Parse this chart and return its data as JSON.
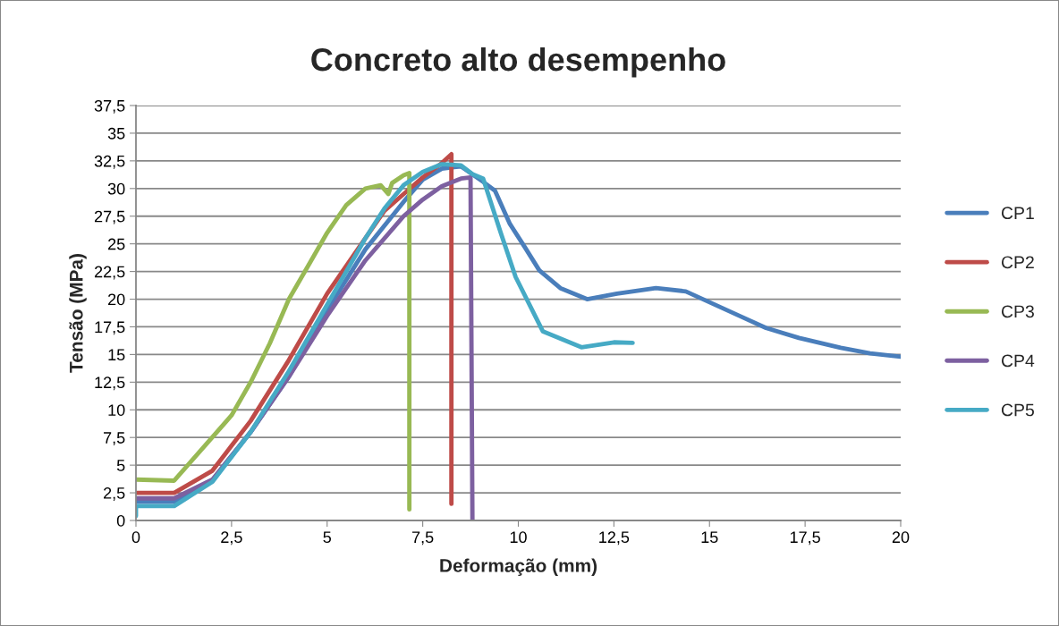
{
  "chart_data": {
    "type": "line",
    "title": "Concreto alto desempenho",
    "xlabel": "Deformação (mm)",
    "ylabel": "Tensão (MPa)",
    "xlim": [
      0,
      20
    ],
    "xticks": [
      0,
      {
        "value": 2.5,
        "label": "2,5"
      },
      5,
      {
        "value": 7.5,
        "label": "7,5"
      },
      10,
      {
        "value": 12.5,
        "label": "12,5"
      },
      15,
      {
        "value": 17.5,
        "label": "17,5"
      },
      20
    ],
    "ylim": [
      0,
      37.5
    ],
    "yticks": [
      0,
      {
        "value": 2.5,
        "label": "2,5"
      },
      5,
      {
        "value": 7.5,
        "label": "7,5"
      },
      10,
      {
        "value": 12.5,
        "label": "12,5"
      },
      15,
      {
        "value": 17.5,
        "label": "17,5"
      },
      20,
      {
        "value": 22.5,
        "label": "22,5"
      },
      25,
      {
        "value": 27.5,
        "label": "27,5"
      },
      30,
      {
        "value": 32.5,
        "label": "32,5"
      },
      35,
      {
        "value": 37.5,
        "label": "37,5"
      }
    ],
    "grid": "y",
    "legend": "right",
    "marker": "none",
    "line_style": "solid",
    "series": [
      {
        "name": "CP1",
        "color": "#4a7ebb",
        "x": [
          0,
          1,
          2,
          3,
          4,
          5,
          6,
          7,
          7.5,
          8,
          8.5,
          9.08,
          9.39,
          9.78,
          10.17,
          10.55,
          11.1,
          11.8,
          12.58,
          13.6,
          14.38,
          15.78,
          16.48,
          17.34,
          18.43,
          19.2,
          20
        ],
        "values": [
          1.7,
          1.7,
          3.6,
          8,
          13,
          19,
          24.5,
          28.8,
          30.8,
          31.8,
          32,
          30.6,
          29.8,
          26.8,
          24.7,
          22.6,
          21,
          20,
          20.5,
          21,
          20.7,
          18.5,
          17.4,
          16.5,
          15.6,
          15.1,
          14.8
        ]
      },
      {
        "name": "CP2",
        "color": "#be4b48",
        "x": [
          0,
          1,
          2,
          3,
          4,
          5,
          6,
          6.5,
          7,
          7.5,
          8,
          8.25,
          8.25
        ],
        "values": [
          2.5,
          2.5,
          4.5,
          9,
          14.5,
          20.5,
          25.5,
          28,
          29.5,
          31,
          32.3,
          33.1,
          1.5
        ]
      },
      {
        "name": "CP3",
        "color": "#98b954",
        "x": [
          0,
          1,
          2.5,
          3,
          3.5,
          4,
          4.5,
          5,
          5.5,
          6,
          6.4,
          6.6,
          6.7,
          7,
          7.15,
          7.15
        ],
        "values": [
          3.7,
          3.6,
          9.5,
          12.5,
          16,
          20,
          23,
          26,
          28.5,
          30,
          30.3,
          29.5,
          30.5,
          31.2,
          31.4,
          1
        ]
      },
      {
        "name": "CP4",
        "color": "#7d60a0",
        "x": [
          0,
          1,
          2,
          3,
          4,
          5,
          6,
          7,
          7.5,
          8,
          8.5,
          8.75,
          8.8
        ],
        "values": [
          2,
          2,
          3.7,
          8,
          13,
          18.5,
          23.5,
          27.5,
          29,
          30.2,
          30.9,
          31,
          0
        ]
      },
      {
        "name": "CP5",
        "color": "#46aac5",
        "x": [
          0,
          0,
          1,
          2,
          3,
          4,
          5,
          6,
          6.5,
          7,
          7.5,
          8,
          8.5,
          8.8,
          9.08,
          9.54,
          9.93,
          10.64,
          11.65,
          12.5,
          12.99
        ],
        "values": [
          0.4,
          1.3,
          1.3,
          3.5,
          8,
          13.5,
          19.5,
          25.5,
          28.2,
          30.3,
          31.5,
          32.2,
          32.1,
          31.3,
          30.9,
          26,
          22,
          17.1,
          15.65,
          16.1,
          16.05
        ]
      }
    ]
  }
}
